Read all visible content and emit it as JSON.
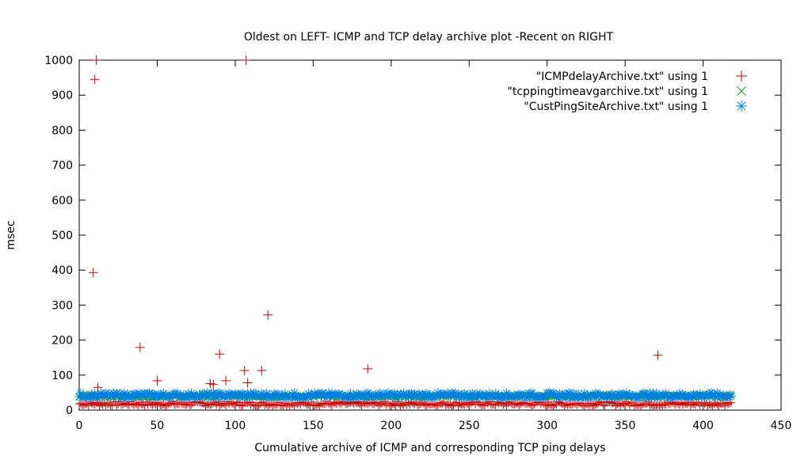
{
  "chart_data": {
    "type": "scatter",
    "title": "Oldest on LEFT- ICMP and TCP delay archive plot -Recent on RIGHT",
    "xlabel": "Cumulative archive of ICMP and corresponding TCP ping delays",
    "ylabel": "msec",
    "xlim": [
      0,
      450
    ],
    "ylim": [
      0,
      1000
    ],
    "x_ticks": [
      0,
      50,
      100,
      150,
      200,
      250,
      300,
      350,
      400,
      450
    ],
    "y_ticks": [
      0,
      100,
      200,
      300,
      400,
      500,
      600,
      700,
      800,
      900,
      1000
    ],
    "grid": false,
    "legend_position": "top-right",
    "series": [
      {
        "name": "\"ICMPdelayArchive.txt\" using 1",
        "marker": "plus",
        "color": "#cc0000",
        "points": [
          [
            9,
            393
          ],
          [
            10,
            945
          ],
          [
            11,
            1000
          ],
          [
            12,
            65
          ],
          [
            39,
            179
          ],
          [
            50,
            84
          ],
          [
            84,
            76
          ],
          [
            86,
            73
          ],
          [
            90,
            160
          ],
          [
            94,
            84
          ],
          [
            106,
            113
          ],
          [
            107,
            1000
          ],
          [
            108,
            78
          ],
          [
            117,
            113
          ],
          [
            121,
            272
          ],
          [
            185,
            118
          ],
          [
            371,
            157
          ]
        ],
        "baseline": {
          "x_range": [
            0,
            418
          ],
          "y_approx": 18
        }
      },
      {
        "name": "\"tcppingtimeavgarchive.txt\" using 1",
        "marker": "cross",
        "color": "#00aa00",
        "points": [],
        "baseline": {
          "x_range": [
            0,
            418
          ],
          "y_approx": 40
        }
      },
      {
        "name": "\"CustPingSiteArchive.txt\" using 1",
        "marker": "star",
        "color": "#0080e0",
        "points": [],
        "baseline": {
          "x_range": [
            0,
            418
          ],
          "y_approx": 42
        }
      }
    ]
  }
}
